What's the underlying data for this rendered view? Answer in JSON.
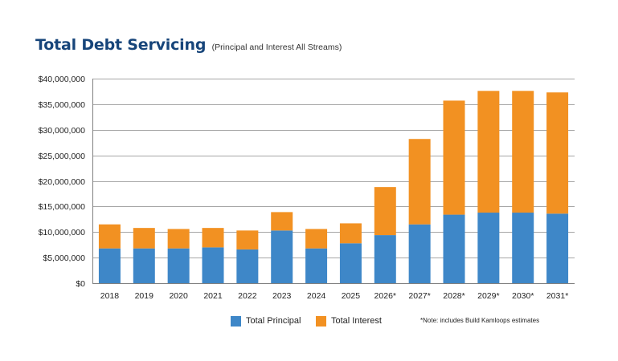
{
  "chart_data": {
    "type": "bar",
    "stacked": true,
    "title": "Total Debt Servicing",
    "subtitle": "(Principal and Interest All Streams)",
    "categories": [
      "2018",
      "2019",
      "2020",
      "2021",
      "2022",
      "2023",
      "2024",
      "2025",
      "2026*",
      "2027*",
      "2028*",
      "2029*",
      "2030*",
      "2031*"
    ],
    "series": [
      {
        "name": "Total Principal",
        "color": "#3e87c8",
        "values": [
          6800000,
          6800000,
          6800000,
          7000000,
          6600000,
          10300000,
          6800000,
          7800000,
          9400000,
          11500000,
          13400000,
          13800000,
          13800000,
          13600000
        ]
      },
      {
        "name": "Total Interest",
        "color": "#f29122",
        "values": [
          4700000,
          4000000,
          3800000,
          3800000,
          3700000,
          3600000,
          3800000,
          3900000,
          9400000,
          16700000,
          22300000,
          23800000,
          23800000,
          23700000
        ]
      }
    ],
    "ylim": [
      0,
      40000000
    ],
    "ytick_values": [
      0,
      5000000,
      10000000,
      15000000,
      20000000,
      25000000,
      30000000,
      35000000,
      40000000
    ],
    "ytick_labels": [
      "$0",
      "$5,000,000",
      "$10,000,000",
      "$15,000,000",
      "$20,000,000",
      "$25,000,000",
      "$30,000,000",
      "$35,000,000",
      "$40,000,000"
    ],
    "grid": true,
    "legend_position": "bottom-center",
    "note": "*Note: includes Build Kamloops estimates",
    "axis_color": "#808080",
    "gridline_color": "#a6a6a6"
  }
}
